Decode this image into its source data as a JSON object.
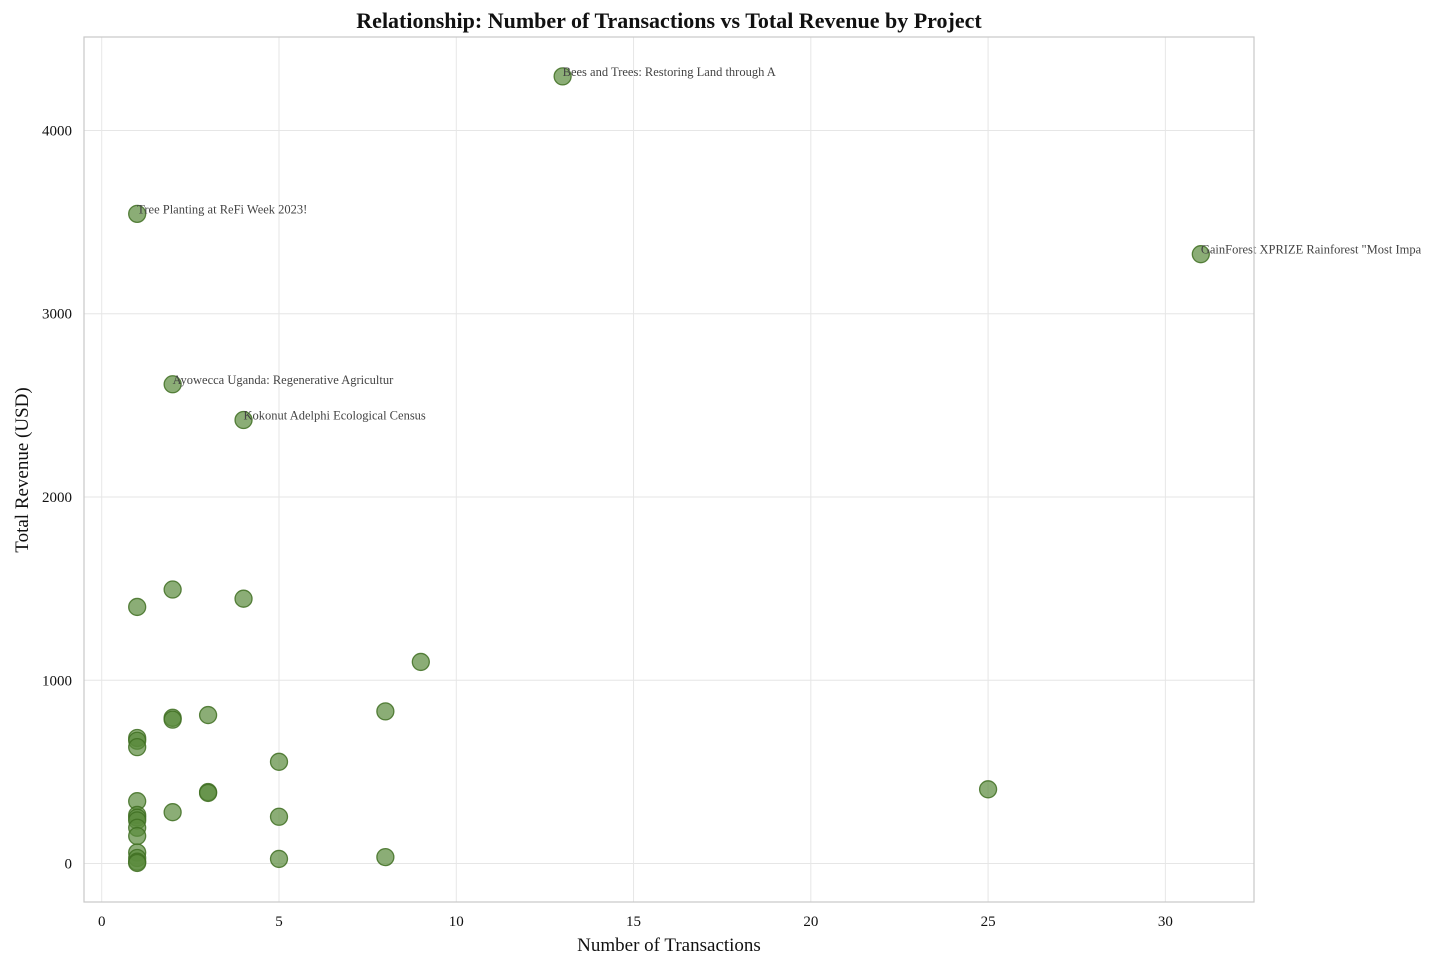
{
  "chart_data": {
    "type": "scatter",
    "title": "Relationship: Number of Transactions vs Total Revenue by Project",
    "xlabel": "Number of Transactions",
    "ylabel": "Total Revenue (USD)",
    "xlim": [
      -0.5,
      32.5
    ],
    "ylim": [
      -210,
      4510
    ],
    "xticks": [
      0,
      5,
      10,
      15,
      20,
      25,
      30
    ],
    "yticks": [
      0,
      1000,
      2000,
      3000,
      4000
    ],
    "grid": true,
    "marker_color": "#5a8a3c",
    "marker_edge_color": "#3f6e22",
    "points": [
      {
        "x": 13,
        "y": 4295,
        "label": "Bees and Trees: Restoring Land through A"
      },
      {
        "x": 1,
        "y": 3545,
        "label": "Tree Planting at ReFi Week 2023!"
      },
      {
        "x": 31,
        "y": 3325,
        "label": "GainForest  XPRIZE Rainforest \"Most Impa"
      },
      {
        "x": 2,
        "y": 2615,
        "label": "Ayowecca Uganda: Regenerative Agricultur"
      },
      {
        "x": 4,
        "y": 2420,
        "label": "Kokonut Adelphi Ecological Census"
      },
      {
        "x": 2,
        "y": 1495
      },
      {
        "x": 4,
        "y": 1445
      },
      {
        "x": 1,
        "y": 1400
      },
      {
        "x": 9,
        "y": 1100
      },
      {
        "x": 8,
        "y": 830
      },
      {
        "x": 3,
        "y": 810
      },
      {
        "x": 2,
        "y": 795
      },
      {
        "x": 2,
        "y": 785
      },
      {
        "x": 1,
        "y": 685
      },
      {
        "x": 1,
        "y": 670
      },
      {
        "x": 1,
        "y": 635
      },
      {
        "x": 5,
        "y": 555
      },
      {
        "x": 25,
        "y": 405
      },
      {
        "x": 3,
        "y": 390
      },
      {
        "x": 3,
        "y": 385
      },
      {
        "x": 1,
        "y": 340
      },
      {
        "x": 2,
        "y": 280
      },
      {
        "x": 1,
        "y": 265
      },
      {
        "x": 5,
        "y": 255
      },
      {
        "x": 1,
        "y": 250
      },
      {
        "x": 1,
        "y": 235
      },
      {
        "x": 1,
        "y": 195
      },
      {
        "x": 1,
        "y": 150
      },
      {
        "x": 1,
        "y": 60
      },
      {
        "x": 8,
        "y": 35
      },
      {
        "x": 1,
        "y": 30
      },
      {
        "x": 5,
        "y": 25
      },
      {
        "x": 1,
        "y": 10
      },
      {
        "x": 1,
        "y": 3
      }
    ]
  }
}
